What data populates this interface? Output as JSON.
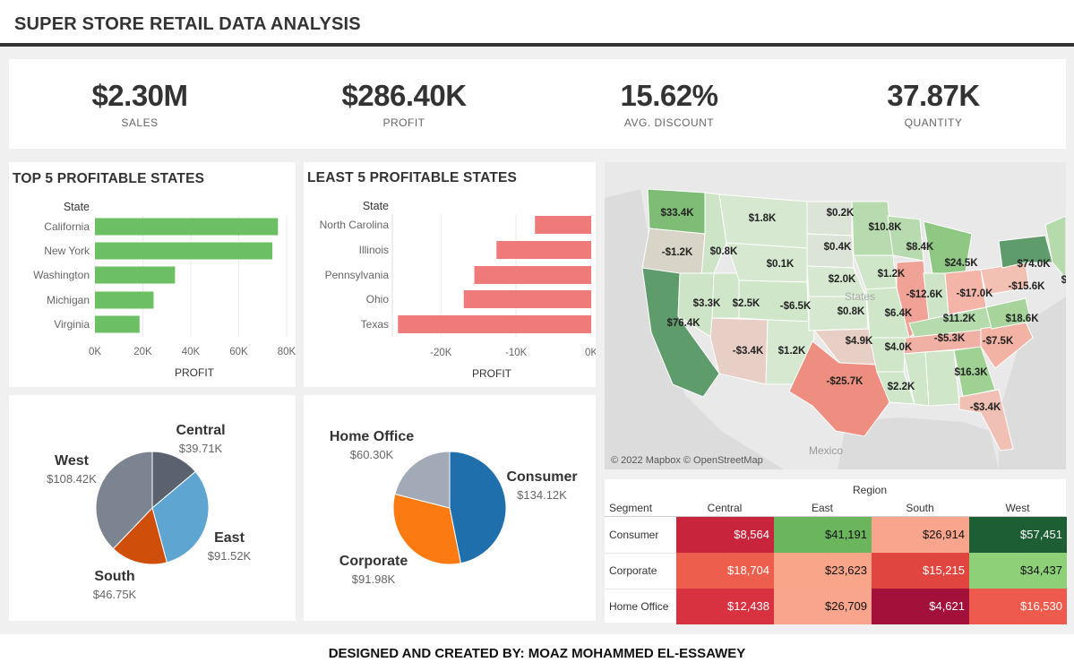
{
  "header": {
    "title": "SUPER STORE RETAIL DATA ANALYSIS"
  },
  "kpis": [
    {
      "value": "$2.30M",
      "label": "SALES"
    },
    {
      "value": "$286.40K",
      "label": "PROFIT"
    },
    {
      "value": "15.62%",
      "label": "AVG. DISCOUNT"
    },
    {
      "value": "37.87K",
      "label": "QUANTITY"
    }
  ],
  "top5": {
    "title": "TOP 5 PROFITABLE STATES",
    "chart_data": {
      "type": "bar",
      "orientation": "horizontal",
      "title": "TOP 5 PROFITABLE STATES",
      "ylabel": "State",
      "xlabel": "PROFIT",
      "categories": [
        "California",
        "New York",
        "Washington",
        "Michigan",
        "Virginia"
      ],
      "values": [
        76381,
        74039,
        33403,
        24463,
        18598
      ],
      "xlim": [
        0,
        80000
      ],
      "xticks": [
        "0K",
        "20K",
        "40K",
        "60K",
        "80K"
      ],
      "color": "#6cbf63"
    }
  },
  "least5": {
    "title": "LEAST 5 PROFITABLE STATES",
    "chart_data": {
      "type": "bar",
      "orientation": "horizontal",
      "title": "LEAST 5 PROFITABLE STATES",
      "ylabel": "State",
      "xlabel": "PROFIT",
      "categories": [
        "North Carolina",
        "Illinois",
        "Pennsylvania",
        "Ohio",
        "Texas"
      ],
      "values": [
        -7491,
        -12608,
        -15560,
        -16971,
        -25729
      ],
      "xlim": [
        -26000,
        0
      ],
      "xticks": [
        "-20K",
        "-10K",
        "0K"
      ],
      "color": "#ee7b79"
    }
  },
  "region_pie": {
    "chart_data": {
      "type": "pie",
      "slices": [
        {
          "name": "Central",
          "value": 39.71,
          "label": "$39.71K",
          "color": "#5a626f"
        },
        {
          "name": "East",
          "value": 91.52,
          "label": "$91.52K",
          "color": "#5fa5d2"
        },
        {
          "name": "South",
          "value": 46.75,
          "label": "$46.75K",
          "color": "#cf4e0a"
        },
        {
          "name": "West",
          "value": 108.42,
          "label": "$108.42K",
          "color": "#7b8490"
        }
      ]
    }
  },
  "segment_pie": {
    "chart_data": {
      "type": "pie",
      "slices": [
        {
          "name": "Consumer",
          "value": 134.12,
          "label": "$134.12K",
          "color": "#1e6fab"
        },
        {
          "name": "Corporate",
          "value": 91.98,
          "label": "$91.98K",
          "color": "#fb7b12"
        },
        {
          "name": "Home Office",
          "value": 60.3,
          "label": "$60.30K",
          "color": "#a1aab6"
        }
      ]
    }
  },
  "map": {
    "attribution": "© 2022 Mapbox © OpenStreetMap",
    "country_labels": [
      "Mexico",
      "States"
    ],
    "labels": [
      "$33.4K",
      "$1.8K",
      "$0.2K",
      "$10.8K",
      "-$1.2K",
      "$0.8K",
      "$0.4K",
      "$8.4K",
      "$0.1K",
      "$24.5K",
      "$74.0K",
      "$2.0K",
      "$1.2K",
      "-$12.6K",
      "-$17.0K",
      "-$15.6K",
      "$7",
      "$3.3K",
      "$2.5K",
      "-$6.5K",
      "$0.8K",
      "$6.4K",
      "$11.2K",
      "$18.6K",
      "$76.4K",
      "-$3.4K",
      "$1.2K",
      "$4.9K",
      "$4.0K",
      "-$5.3K",
      "-$7.5K",
      "$16.3K",
      "-$25.7K",
      "$2.2K",
      "-$3.4K"
    ]
  },
  "heatmap": {
    "chart_data": {
      "type": "heatmap",
      "col_header": "Region",
      "row_header": "Segment",
      "columns": [
        "Central",
        "East",
        "South",
        "West"
      ],
      "rows": [
        {
          "name": "Consumer",
          "values": [
            "$8,564",
            "$41,191",
            "$26,914",
            "$57,451"
          ],
          "colors": [
            "#c8243c",
            "#6bb55d",
            "#f9a58d",
            "#1e5e35"
          ],
          "text_colors": [
            "#fff",
            "#111",
            "#111",
            "#fff"
          ]
        },
        {
          "name": "Corporate",
          "values": [
            "$18,704",
            "$23,623",
            "$15,215",
            "$34,437"
          ],
          "colors": [
            "#ed5f4c",
            "#f9a589",
            "#e0453f",
            "#8ed077"
          ],
          "text_colors": [
            "#fff",
            "#111",
            "#fff",
            "#111"
          ]
        },
        {
          "name": "Home Office",
          "values": [
            "$12,438",
            "$26,709",
            "$4,621",
            "$16,530"
          ],
          "colors": [
            "#d8313f",
            "#f9a58d",
            "#a3103a",
            "#ee5a4b"
          ],
          "text_colors": [
            "#fff",
            "#111",
            "#fff",
            "#fff"
          ]
        }
      ]
    }
  },
  "footer": {
    "text": "DESIGNED AND CREATED BY: MOAZ MOHAMMED EL-ESSAWEY"
  }
}
